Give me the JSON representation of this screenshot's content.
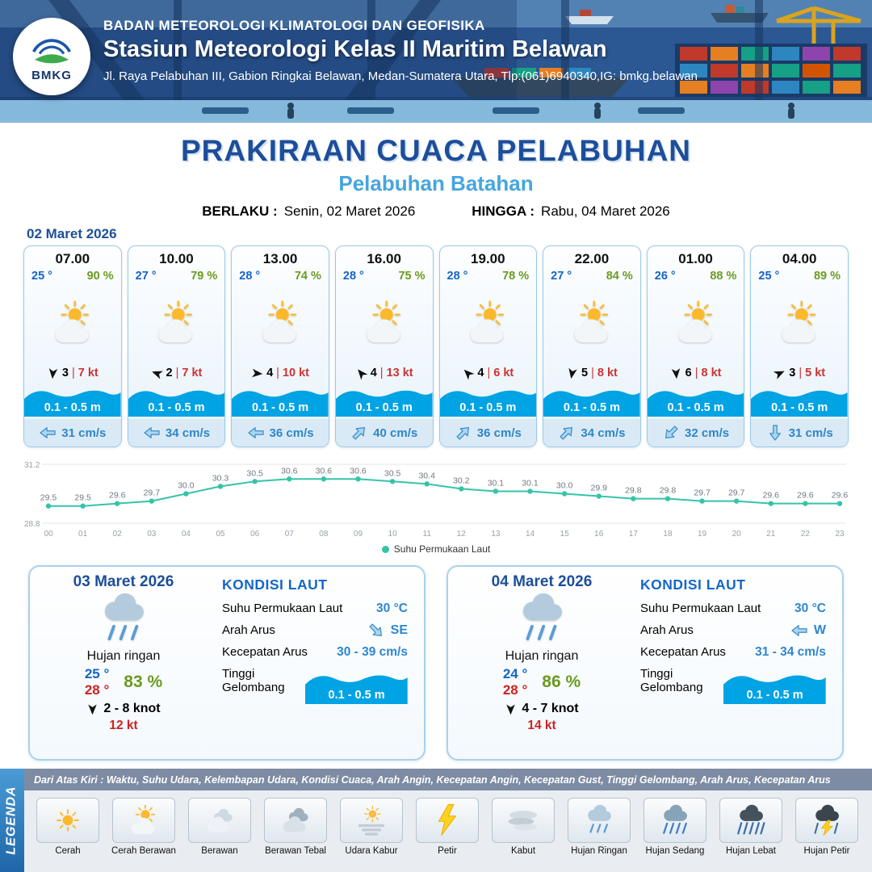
{
  "header": {
    "org": "BADAN METEOROLOGI KLIMATOLOGI DAN GEOFISIKA",
    "station": "Stasiun Meteorologi Kelas II Maritim Belawan",
    "address": "Jl. Raya Pelabuhan III, Gabion Ringkai Belawan, Medan-Sumatera Utara, Tlp:(061)6940340,IG: bmkg.belawan",
    "logo_text": "BMKG"
  },
  "title": {
    "main": "PRAKIRAAN CUACA PELABUHAN",
    "port": "Pelabuhan Batahan",
    "berlaku_label": "BERLAKU :",
    "berlaku_value": "Senin, 02 Maret 2026",
    "hingga_label": "HINGGA :",
    "hingga_value": "Rabu, 04 Maret 2026"
  },
  "forecast_date": "02 Maret 2026",
  "ui": {
    "sep": "|"
  },
  "colors": {
    "accent_blue": "#1d4e9b",
    "light_blue": "#46a5de",
    "wave_blue": "#00a3e4",
    "line_teal": "#35c4a8",
    "gust_red": "#cc3333",
    "humidity_green": "#6a9a1f"
  },
  "forecast_cards": [
    {
      "time": "07.00",
      "temp": "25 °",
      "rh": "90 %",
      "icon": "cerah-berawan",
      "wind_speed": "3",
      "gust": "7 kt",
      "wind_dir_deg": 95,
      "wave": "0.1 - 0.5 m",
      "current": "31 cm/s",
      "current_dir_deg": 180
    },
    {
      "time": "10.00",
      "temp": "27 °",
      "rh": "79 %",
      "icon": "cerah-berawan",
      "wind_speed": "2",
      "gust": "7 kt",
      "wind_dir_deg": 200,
      "wave": "0.1 - 0.5 m",
      "current": "34 cm/s",
      "current_dir_deg": 180
    },
    {
      "time": "13.00",
      "temp": "28 °",
      "rh": "74 %",
      "icon": "cerah-berawan",
      "wind_speed": "4",
      "gust": "10 kt",
      "wind_dir_deg": 5,
      "wave": "0.1 - 0.5 m",
      "current": "36 cm/s",
      "current_dir_deg": 180
    },
    {
      "time": "16.00",
      "temp": "28 °",
      "rh": "75 %",
      "icon": "cerah-berawan",
      "wind_speed": "4",
      "gust": "13 kt",
      "wind_dir_deg": 230,
      "wave": "0.1 - 0.5 m",
      "current": "40 cm/s",
      "current_dir_deg": 315
    },
    {
      "time": "19.00",
      "temp": "28 °",
      "rh": "78 %",
      "icon": "cerah-berawan",
      "wind_speed": "4",
      "gust": "6 kt",
      "wind_dir_deg": 225,
      "wave": "0.1 - 0.5 m",
      "current": "36 cm/s",
      "current_dir_deg": 315
    },
    {
      "time": "22.00",
      "temp": "27 °",
      "rh": "84 %",
      "icon": "cerah-berawan",
      "wind_speed": "5",
      "gust": "8 kt",
      "wind_dir_deg": 100,
      "wave": "0.1 - 0.5 m",
      "current": "34 cm/s",
      "current_dir_deg": 315
    },
    {
      "time": "01.00",
      "temp": "26 °",
      "rh": "88 %",
      "icon": "cerah-berawan",
      "wind_speed": "6",
      "gust": "8 kt",
      "wind_dir_deg": 85,
      "wave": "0.1 - 0.5 m",
      "current": "32 cm/s",
      "current_dir_deg": 135
    },
    {
      "time": "04.00",
      "temp": "25 °",
      "rh": "89 %",
      "icon": "cerah-berawan",
      "wind_speed": "3",
      "gust": "5 kt",
      "wind_dir_deg": 335,
      "wave": "0.1 - 0.5 m",
      "current": "31 cm/s",
      "current_dir_deg": 90
    }
  ],
  "chart_data": {
    "type": "line",
    "legend": "Suhu Permukaan Laut",
    "x": [
      "00",
      "01",
      "02",
      "03",
      "04",
      "05",
      "06",
      "07",
      "08",
      "09",
      "10",
      "11",
      "12",
      "13",
      "14",
      "15",
      "16",
      "17",
      "18",
      "19",
      "20",
      "21",
      "22",
      "23"
    ],
    "values": [
      29.5,
      29.5,
      29.6,
      29.7,
      30.0,
      30.3,
      30.5,
      30.6,
      30.6,
      30.6,
      30.5,
      30.4,
      30.2,
      30.1,
      30.1,
      30.0,
      29.9,
      29.8,
      29.8,
      29.7,
      29.7,
      29.6,
      29.6,
      29.6
    ],
    "ylim": [
      28.8,
      31.2
    ],
    "line_color": "#35c4a8",
    "grid": "top-bottom-only",
    "legend_position": "bottom-center"
  },
  "daily_cards": [
    {
      "date": "03 Maret 2026",
      "icon": "hujan-ringan",
      "condition": "Hujan ringan",
      "temp_min": "25 °",
      "temp_max": "28 °",
      "rh": "83 %",
      "wind_range": "2  - 8 knot",
      "gust": "12 kt",
      "wind_dir_deg": 90,
      "sea": {
        "title": "KONDISI LAUT",
        "sst_label": "Suhu Permukaan Laut",
        "sst": "30 °C",
        "current_dir_label": "Arah Arus",
        "current_dir": "SE",
        "current_dir_deg": 45,
        "current_speed_label": "Kecepatan Arus",
        "current_speed": "30  - 39 cm/s",
        "wave_label": "Tinggi Gelombang",
        "wave": "0.1 - 0.5 m"
      }
    },
    {
      "date": "04 Maret 2026",
      "icon": "hujan-ringan",
      "condition": "Hujan ringan",
      "temp_min": "24 °",
      "temp_max": "28 °",
      "rh": "86 %",
      "wind_range": "4  - 7 knot",
      "gust": "14 kt",
      "wind_dir_deg": 90,
      "sea": {
        "title": "KONDISI LAUT",
        "sst_label": "Suhu Permukaan Laut",
        "sst": "30 °C",
        "current_dir_label": "Arah Arus",
        "current_dir": "W",
        "current_dir_deg": 180,
        "current_speed_label": "Kecepatan Arus",
        "current_speed": "31  - 34 cm/s",
        "wave_label": "Tinggi Gelombang",
        "wave": "0.1 - 0.5 m"
      }
    }
  ],
  "legend": {
    "vertical_label": "LEGENDA",
    "note": "Dari Atas Kiri : Waktu, Suhu Udara, Kelembapan Udara, Kondisi Cuaca, Arah Angin, Kecepatan Angin, Kecepatan Gust, Tinggi Gelombang, Arah Arus, Kecepatan Arus",
    "items": [
      {
        "label": "Cerah",
        "icon": "cerah"
      },
      {
        "label": "Cerah Berawan",
        "icon": "cerah-berawan"
      },
      {
        "label": "Berawan",
        "icon": "berawan"
      },
      {
        "label": "Berawan Tebal",
        "icon": "berawan-tebal"
      },
      {
        "label": "Udara Kabur",
        "icon": "udara-kabur"
      },
      {
        "label": "Petir",
        "icon": "petir"
      },
      {
        "label": "Kabut",
        "icon": "kabut"
      },
      {
        "label": "Hujan Ringan",
        "icon": "hujan-ringan"
      },
      {
        "label": "Hujan Sedang",
        "icon": "hujan-sedang"
      },
      {
        "label": "Hujan Lebat",
        "icon": "hujan-lebat"
      },
      {
        "label": "Hujan Petir",
        "icon": "hujan-petir"
      }
    ]
  }
}
